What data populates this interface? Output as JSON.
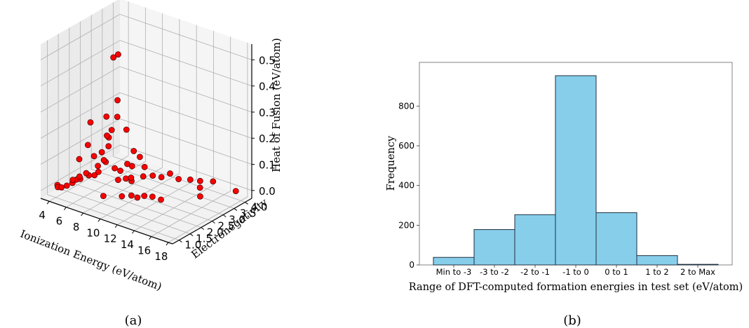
{
  "panel_a": {
    "caption": "(a)",
    "chart_data": {
      "type": "scatter",
      "projection": "3d",
      "xlabel": "Ionization Energy (eV/atom)",
      "ylabel": "Electronegativity",
      "zlabel": "Heat of Fusion (eV/atom)",
      "x_ticks": [
        "4",
        "6",
        "8",
        "10",
        "12",
        "14",
        "16",
        "18"
      ],
      "y_ticks": [
        "1.0",
        "1.5",
        "2.0",
        "2.5",
        "3.0",
        "3.5",
        "4.0"
      ],
      "z_ticks": [
        "0.0",
        "0.1",
        "0.2",
        "0.3",
        "0.4",
        "0.5"
      ],
      "xlim": [
        3,
        18.5
      ],
      "ylim": [
        0.7,
        4.3
      ],
      "zlim": [
        -0.03,
        0.56
      ],
      "grid": true,
      "marker_color": "#ff0000",
      "points": [
        [
          4.2,
          1.0,
          0.02
        ],
        [
          4.5,
          0.9,
          0.02
        ],
        [
          4.8,
          0.95,
          0.02
        ],
        [
          5.3,
          1.0,
          0.03
        ],
        [
          5.7,
          1.1,
          0.04
        ],
        [
          5.9,
          1.2,
          0.05
        ],
        [
          6.1,
          1.3,
          0.05
        ],
        [
          6.6,
          1.5,
          0.06
        ],
        [
          7.0,
          1.6,
          0.06
        ],
        [
          7.2,
          1.7,
          0.07
        ],
        [
          6.0,
          1.0,
          0.06
        ],
        [
          6.4,
          1.15,
          0.07
        ],
        [
          6.8,
          1.3,
          0.08
        ],
        [
          7.4,
          1.6,
          0.1
        ],
        [
          7.8,
          1.8,
          0.11
        ],
        [
          6.5,
          1.1,
          0.14
        ],
        [
          7.2,
          1.5,
          0.14
        ],
        [
          7.6,
          1.7,
          0.15
        ],
        [
          8.0,
          1.85,
          0.17
        ],
        [
          7.0,
          1.3,
          0.19
        ],
        [
          7.9,
          1.9,
          0.2
        ],
        [
          8.2,
          1.7,
          0.22
        ],
        [
          8.5,
          1.8,
          0.24
        ],
        [
          7.3,
          1.3,
          0.28
        ],
        [
          8.4,
          1.6,
          0.3
        ],
        [
          8.9,
          1.9,
          0.29
        ],
        [
          9.2,
          2.2,
          0.23
        ],
        [
          8.8,
          1.95,
          0.35
        ],
        [
          8.7,
          1.8,
          0.52
        ],
        [
          9.0,
          1.9,
          0.53
        ],
        [
          8.1,
          1.6,
          0.13
        ],
        [
          8.6,
          1.9,
          0.09
        ],
        [
          9.0,
          2.0,
          0.08
        ],
        [
          9.3,
          2.2,
          0.1
        ],
        [
          9.6,
          2.3,
          0.09
        ],
        [
          10.0,
          2.5,
          0.12
        ],
        [
          10.3,
          2.6,
          0.08
        ],
        [
          9.0,
          1.9,
          0.05
        ],
        [
          9.4,
          2.1,
          0.05
        ],
        [
          9.8,
          2.2,
          0.04
        ],
        [
          10.4,
          2.5,
          0.05
        ],
        [
          11.0,
          2.7,
          0.05
        ],
        [
          11.5,
          2.9,
          0.04
        ],
        [
          12.0,
          3.1,
          0.05
        ],
        [
          13.0,
          3.1,
          0.04
        ],
        [
          13.6,
          3.4,
          0.03
        ],
        [
          14.5,
          3.5,
          0.03
        ],
        [
          15.0,
          3.3,
          0.02
        ],
        [
          15.5,
          3.7,
          0.03
        ],
        [
          17.4,
          4.0,
          0.0
        ],
        [
          10.3,
          2.0,
          0.0
        ],
        [
          11.0,
          2.0,
          0.0
        ],
        [
          11.3,
          2.2,
          0.0
        ],
        [
          8.3,
          1.5,
          0.0
        ],
        [
          9.7,
          1.8,
          0.0
        ],
        [
          12.0,
          2.3,
          0.0
        ],
        [
          13.0,
          2.3,
          0.0
        ],
        [
          15.8,
          3.0,
          0.01
        ],
        [
          10.0,
          2.1,
          0.06
        ],
        [
          9.8,
          2.3,
          0.15
        ]
      ]
    }
  },
  "panel_b": {
    "caption": "(b)",
    "chart_data": {
      "type": "bar",
      "title": "",
      "xlabel": "Range of DFT-computed formation energies in test set (eV/atom)",
      "ylabel": "Frequency",
      "categories": [
        "Min to -3",
        "-3 to -2",
        "-2 to -1",
        "-1 to 0",
        "0 to 1",
        "1 to 2",
        "2 to Max"
      ],
      "values": [
        38,
        178,
        253,
        953,
        263,
        47,
        3
      ],
      "ylim": [
        0,
        1020
      ],
      "yticks": [
        0,
        200,
        400,
        600,
        800
      ],
      "bar_color": "#87ceeb",
      "edge_color": "#1f2f3f",
      "grid": false
    }
  }
}
